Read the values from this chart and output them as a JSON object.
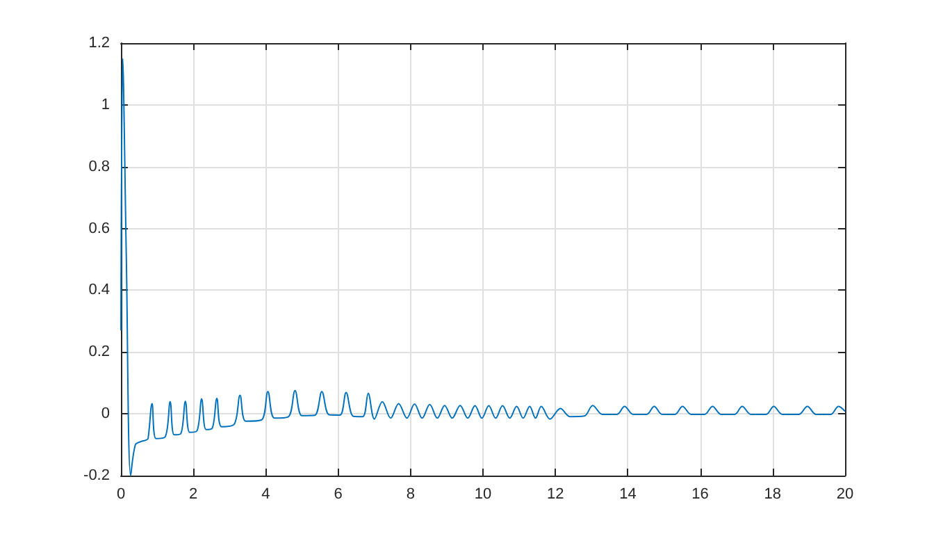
{
  "chart_data": {
    "type": "line",
    "color": "#0072bd",
    "grid": true,
    "marker": "none",
    "line_style": "solid",
    "xlim": [
      0,
      20
    ],
    "xticks": [
      0,
      2,
      4,
      6,
      8,
      10,
      12,
      14,
      16,
      18,
      20
    ],
    "ylim": [
      -0.2,
      1.2
    ],
    "yticks": [
      -0.2,
      0,
      0.2,
      0.4,
      0.6,
      0.8,
      1,
      1.2
    ],
    "x": [
      0,
      0.05,
      0.15,
      0.27,
      0.4,
      0.55,
      0.7,
      0.75,
      0.86,
      0.97,
      1.22,
      1.36,
      1.47,
      1.65,
      1.78,
      1.9,
      2.1,
      2.23,
      2.35,
      2.52,
      2.65,
      2.78,
      3.12,
      3.29,
      3.45,
      3.88,
      4.06,
      4.24,
      4.62,
      4.81,
      5.0,
      5.35,
      5.55,
      5.75,
      6.05,
      6.22,
      6.42,
      6.68,
      6.83,
      7.0,
      7.22,
      7.45,
      7.67,
      7.9,
      8.11,
      8.32,
      8.53,
      8.74,
      8.94,
      9.15,
      9.37,
      9.58,
      9.78,
      9.97,
      10.16,
      10.35,
      10.54,
      10.74,
      10.93,
      11.11,
      11.29,
      11.45,
      11.61,
      11.85,
      12.14,
      12.4,
      12.8,
      13.03,
      13.3,
      13.7,
      13.91,
      14.15,
      14.52,
      14.73,
      14.95,
      15.3,
      15.51,
      15.75,
      16.12,
      16.34,
      16.58,
      16.95,
      17.16,
      17.4,
      17.82,
      18.03,
      18.27,
      18.72,
      18.96,
      19.2,
      19.6,
      19.82,
      20
    ],
    "values": [
      0.27,
      1.15,
      0.5,
      -0.2,
      -0.1,
      -0.09,
      -0.085,
      -0.08,
      0.033,
      -0.08,
      -0.075,
      0.039,
      -0.068,
      -0.065,
      0.04,
      -0.06,
      -0.055,
      0.048,
      -0.051,
      -0.047,
      0.05,
      -0.042,
      -0.035,
      0.06,
      -0.024,
      -0.02,
      0.072,
      -0.014,
      -0.01,
      0.075,
      -0.006,
      -0.005,
      0.072,
      -0.003,
      -0.004,
      0.069,
      -0.008,
      -0.009,
      0.066,
      -0.017,
      0.039,
      -0.014,
      0.033,
      -0.014,
      0.032,
      -0.014,
      0.03,
      -0.014,
      0.027,
      -0.014,
      0.027,
      -0.014,
      0.026,
      -0.014,
      0.026,
      -0.014,
      0.026,
      -0.014,
      0.024,
      -0.014,
      0.024,
      -0.014,
      0.024,
      -0.017,
      0.017,
      -0.009,
      -0.007,
      0.027,
      -0.002,
      -0.002,
      0.024,
      -0.002,
      -0.002,
      0.024,
      -0.002,
      -0.002,
      0.024,
      -0.002,
      -0.002,
      0.024,
      -0.002,
      -0.002,
      0.024,
      -0.002,
      -0.002,
      0.024,
      -0.002,
      -0.002,
      0.024,
      -0.002,
      -0.002,
      0.024,
      0.008
    ]
  }
}
